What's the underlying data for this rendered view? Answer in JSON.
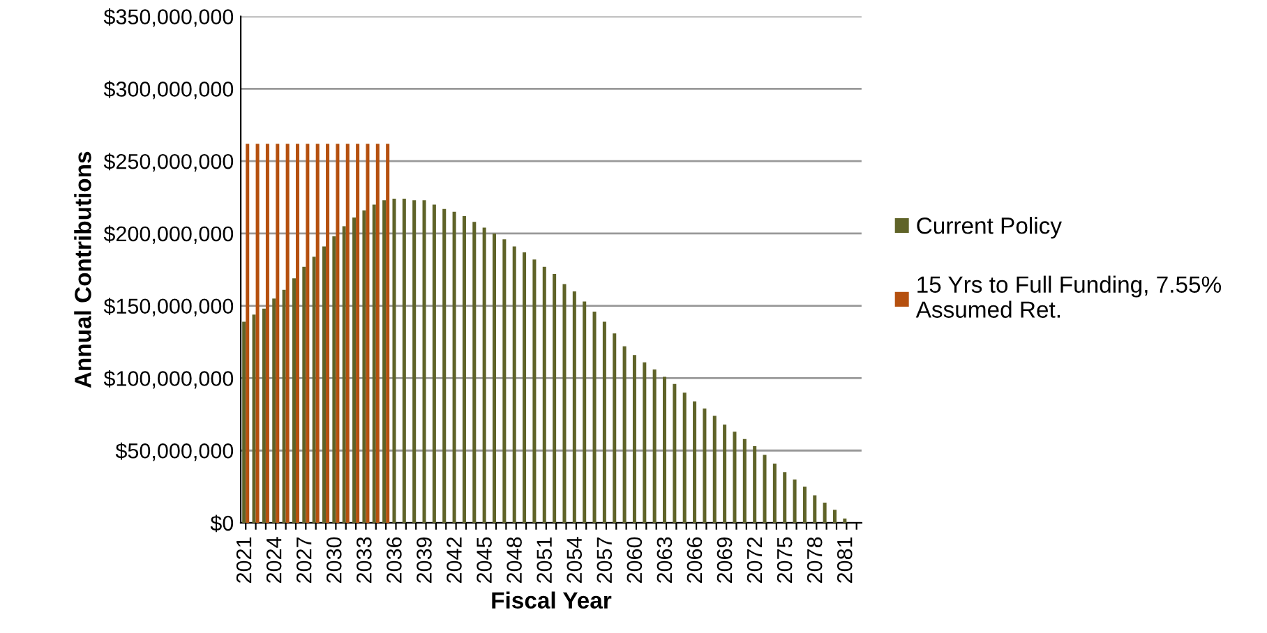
{
  "chart_data": {
    "type": "bar",
    "xlabel": "Fiscal Year",
    "ylabel": "Annual Contributions",
    "categories": [
      "2021",
      null,
      null,
      "2024",
      null,
      null,
      "2027",
      null,
      null,
      "2030",
      null,
      null,
      "2033",
      null,
      null,
      "2036",
      null,
      null,
      "2039",
      null,
      null,
      "2042",
      null,
      null,
      "2045",
      null,
      null,
      "2048",
      null,
      null,
      "2051",
      null,
      null,
      "2054",
      null,
      null,
      "2057",
      null,
      null,
      "2060",
      null,
      null,
      "2063",
      null,
      null,
      "2066",
      null,
      null,
      "2069",
      null,
      null,
      "2072",
      null,
      null,
      "2075",
      null,
      null,
      "2078",
      null,
      null,
      "2081",
      null
    ],
    "series": [
      {
        "name": "Current Policy",
        "color": "#5f6328",
        "values": [
          139000000,
          144000000,
          148000000,
          155000000,
          161000000,
          169000000,
          177000000,
          184000000,
          191000000,
          198000000,
          205000000,
          211000000,
          216000000,
          220000000,
          223000000,
          224000000,
          224000000,
          223000000,
          223000000,
          220000000,
          217000000,
          215000000,
          212000000,
          208000000,
          204000000,
          200000000,
          196000000,
          191000000,
          187000000,
          182000000,
          177000000,
          172000000,
          165000000,
          160000000,
          153000000,
          146000000,
          139000000,
          131000000,
          122000000,
          116000000,
          111000000,
          106000000,
          101000000,
          96000000,
          90000000,
          84000000,
          79000000,
          74000000,
          68000000,
          63000000,
          58000000,
          53000000,
          47000000,
          41000000,
          35000000,
          30000000,
          25000000,
          19000000,
          14000000,
          9000000,
          3000000,
          null
        ]
      },
      {
        "name": "15 Yrs to Full Funding, 7.55%\nAssumed Ret.",
        "color": "#b5500f",
        "values": [
          262000000,
          262000000,
          262000000,
          262000000,
          262000000,
          262000000,
          262000000,
          262000000,
          262000000,
          262000000,
          262000000,
          262000000,
          262000000,
          262000000,
          262000000,
          null,
          null,
          null,
          null,
          null,
          null,
          null,
          null,
          null,
          null,
          null,
          null,
          null,
          null,
          null,
          null,
          null,
          null,
          null,
          null,
          null,
          null,
          null,
          null,
          null,
          null,
          null,
          null,
          null,
          null,
          null,
          null,
          null,
          null,
          null,
          null,
          null,
          null,
          null,
          null,
          null,
          null,
          null,
          null,
          null,
          null,
          null
        ]
      }
    ],
    "ylim": [
      0,
      350000000
    ],
    "yticks": [
      {
        "value": 0,
        "label": "$0"
      },
      {
        "value": 50000000,
        "label": "$50,000,000"
      },
      {
        "value": 100000000,
        "label": "$100,000,000"
      },
      {
        "value": 150000000,
        "label": "$150,000,000"
      },
      {
        "value": 200000000,
        "label": "$200,000,000"
      },
      {
        "value": 250000000,
        "label": "$250,000,000"
      },
      {
        "value": 300000000,
        "label": "$300,000,000"
      },
      {
        "value": 350000000,
        "label": "$350,000,000"
      }
    ],
    "grid": "y",
    "legend": "right"
  }
}
